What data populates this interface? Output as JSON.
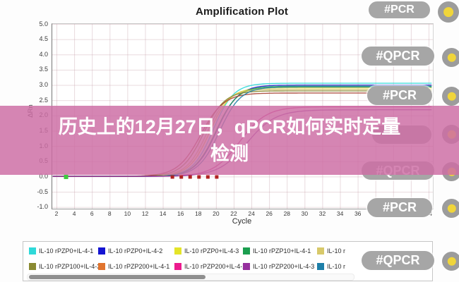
{
  "chart": {
    "title": "Amplification Plot",
    "xlabel": "Cycle",
    "ylabel": "ΔRn",
    "yticks": [
      "5.0",
      "4.5",
      "4.0",
      "3.5",
      "3.0",
      "2.5",
      "2.0",
      "1.5",
      "1.0",
      "0.5",
      "0.0",
      "-0.5",
      "-1.0"
    ],
    "xticks": [
      "2",
      "4",
      "6",
      "8",
      "10",
      "12",
      "14",
      "16",
      "18",
      "20",
      "22",
      "24",
      "26",
      "28",
      "30",
      "32",
      "34",
      "36",
      "38",
      "40",
      "42",
      "44"
    ]
  },
  "chart_data": {
    "type": "line",
    "title": "Amplification Plot",
    "xlabel": "Cycle",
    "ylabel": "ΔRn",
    "xlim": [
      1,
      45
    ],
    "ylim": [
      -1.0,
      5.0
    ],
    "grid": true,
    "legend_position": "bottom",
    "description": "qPCR amplification curves: flat baseline near ΔRn 0 then sigmoidal rise; main bundle plateaus near ΔRn 2.7-3.05 (Ct ~18-20), two late curves plateau near ΔRn 2.2 (Ct ~23)",
    "series": [
      {
        "name": "IL-10 rPZP0+IL-4-1",
        "color": "#2fd9d9",
        "baseline": 0.02,
        "plateau": 3.05,
        "ct": 19.6,
        "slope": 1.15
      },
      {
        "name": "IL-10 rPZP0+IL-4-2",
        "color": "#2222cc",
        "baseline": 0.02,
        "plateau": 2.99,
        "ct": 20.0,
        "slope": 1.2
      },
      {
        "name": "IL-10 rPZP0+IL-4-3",
        "color": "#d9d92e",
        "baseline": 0.02,
        "plateau": 2.9,
        "ct": 19.2,
        "slope": 1.15
      },
      {
        "name": "IL-10 rPZP10+IL-4-1",
        "color": "#219e52",
        "baseline": 0.02,
        "plateau": 2.95,
        "ct": 19.9,
        "slope": 1.2
      },
      {
        "name": "IL-10 r",
        "color": "#d0c065",
        "baseline": 0.02,
        "plateau": 2.85,
        "ct": 18.9,
        "slope": 1.15
      },
      {
        "name": "IL-10 rPZP100+IL-4-3",
        "color": "#8a8a32",
        "baseline": 0.02,
        "plateau": 2.8,
        "ct": 18.5,
        "slope": 1.2
      },
      {
        "name": "IL-10 rPZP200+IL-4-1",
        "color": "#a84434",
        "baseline": 0.02,
        "plateau": 2.73,
        "ct": 18.2,
        "slope": 1.3
      },
      {
        "name": "IL-10 r",
        "color": "#1d7fa8",
        "baseline": 0.02,
        "plateau": 2.93,
        "ct": 20.3,
        "slope": 1.2
      },
      {
        "name": "IL-10 rPZP200+IL-4-2",
        "color": "#cc2a88",
        "baseline": 0.02,
        "plateau": 2.28,
        "ct": 22.6,
        "slope": 1.5
      },
      {
        "name": "IL-10 rPZP200+IL-4-3",
        "color": "#8e3a9e",
        "baseline": 0.02,
        "plateau": 2.18,
        "ct": 23.4,
        "slope": 1.6
      }
    ],
    "markers": {
      "red_squares_cycles": [
        15,
        16,
        17,
        18,
        19,
        20
      ],
      "red_squares_value": 0.0,
      "red_color": "#b22222",
      "green_square_cycle": 3,
      "green_square_value": 0.0,
      "green_color": "#3ecb3e"
    }
  },
  "legend": {
    "items": [
      {
        "label": "IL-10 rPZP0+IL-4-1",
        "color": "#2fd9d9"
      },
      {
        "label": "IL-10 rPZP0+IL-4-2",
        "color": "#1414d2"
      },
      {
        "label": "IL-10 rPZP0+IL-4-3",
        "color": "#e4e428"
      },
      {
        "label": "IL-10 rPZP10+IL-4-1",
        "color": "#1b9e4f"
      },
      {
        "label": "IL-10 r",
        "color": "#d8c96a"
      },
      {
        "label": "IL-10 rPZP100+IL-4-3",
        "color": "#8a8a32"
      },
      {
        "label": "IL-10 rPZP200+IL-4-1",
        "color": "#e1742e"
      },
      {
        "label": "IL-10 rPZP200+IL-4-2",
        "color": "#ec1a8e"
      },
      {
        "label": "IL-10 rPZP200+IL-4-3",
        "color": "#96309e"
      },
      {
        "label": "IL-10 r",
        "color": "#1d7fa8"
      }
    ]
  },
  "badges": [
    "#PCR",
    "#QPCR",
    "#PCR",
    "",
    "#QPCR",
    "#PCR",
    "#QPCR"
  ],
  "overlay": {
    "line1": "历史上的12月27日，qPCR如何实时定量",
    "line2": "检测",
    "banner_color": "#cd6ea5"
  },
  "colors": {
    "badge_bg": "#a6a6a6",
    "circle_ring": "#9c9c9c",
    "circle_dot": "#f0d53a"
  }
}
